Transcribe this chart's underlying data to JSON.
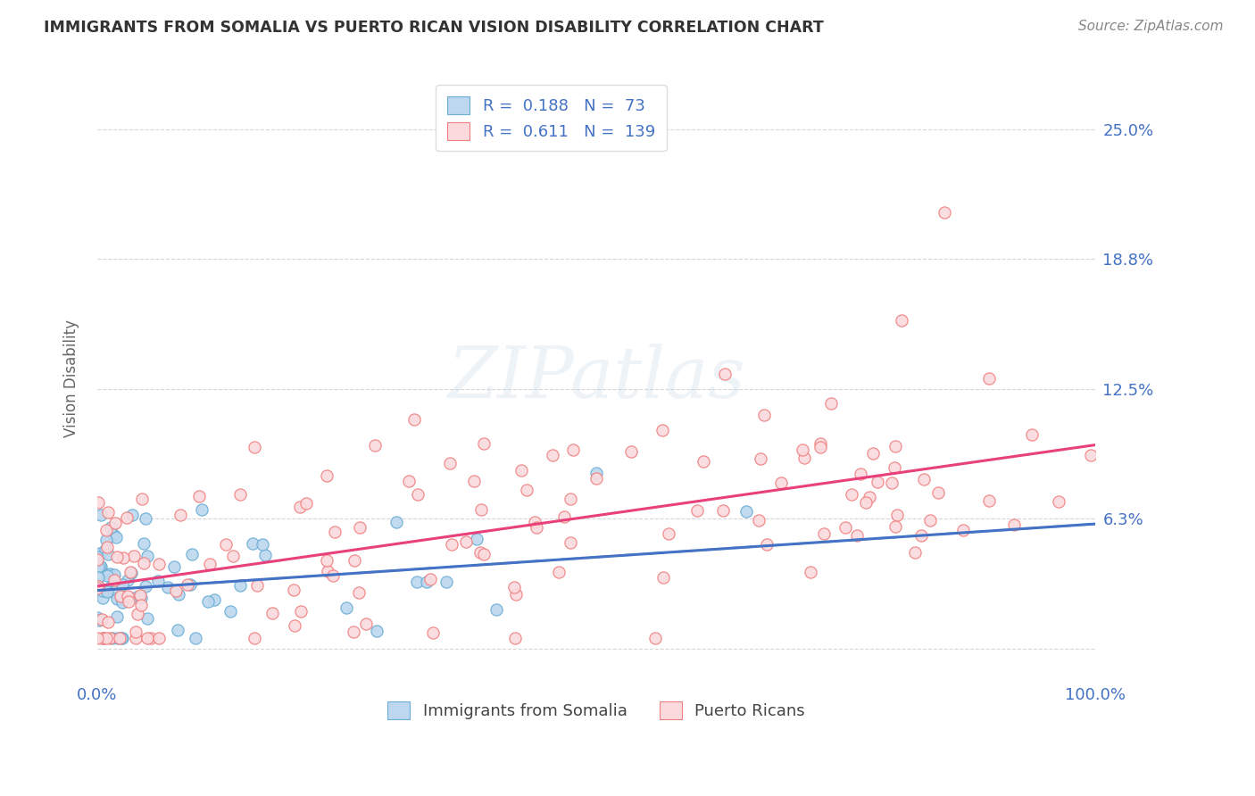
{
  "title": "IMMIGRANTS FROM SOMALIA VS PUERTO RICAN VISION DISABILITY CORRELATION CHART",
  "source": "Source: ZipAtlas.com",
  "ylabel": "Vision Disability",
  "legend_labels": [
    "Immigrants from Somalia",
    "Puerto Ricans"
  ],
  "legend_R": [
    0.188,
    0.611
  ],
  "legend_N": [
    73,
    139
  ],
  "color_somalia_edge": "#6BAED6",
  "color_somalia_fill": "#BDD7EE",
  "color_pr_edge": "#F08080",
  "color_pr_fill": "#FADADD",
  "trendline_somalia_solid": "#4472C4",
  "trendline_somalia_dash": "#92B4D8",
  "trendline_pr": "#E8407A",
  "xlim": [
    0.0,
    1.0
  ],
  "ylim": [
    -0.015,
    0.275
  ],
  "yticks": [
    0.0,
    0.0625,
    0.125,
    0.1875,
    0.25
  ],
  "ytick_labels_right": [
    "",
    "6.3%",
    "12.5%",
    "18.8%",
    "25.0%"
  ],
  "background_color": "#FFFFFF",
  "grid_color": "#CCCCCC",
  "title_color": "#333333",
  "label_color": "#4472C4",
  "legend_text_color": "#444444",
  "legend_value_color": "#4472C4",
  "trendline_somalia_intercept": 0.028,
  "trendline_somalia_slope": 0.032,
  "trendline_somalia_dash_intercept": 0.028,
  "trendline_somalia_dash_slope": 0.032,
  "trendline_pr_intercept": 0.03,
  "trendline_pr_slope": 0.068
}
